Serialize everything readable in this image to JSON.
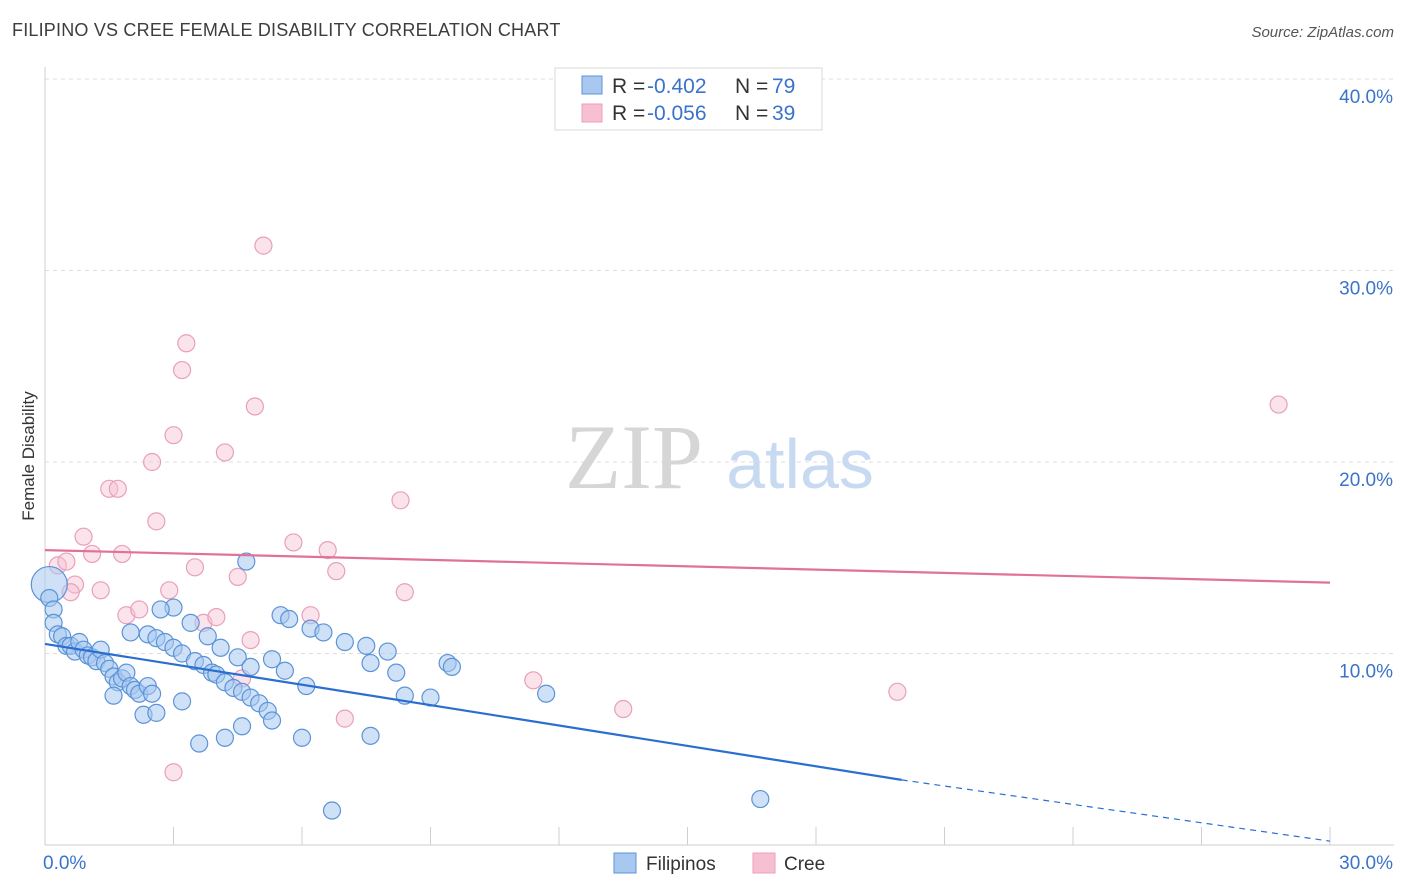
{
  "title": "FILIPINO VS CREE FEMALE DISABILITY CORRELATION CHART",
  "source": "Source: ZipAtlas.com",
  "watermark": {
    "zip": "ZIP",
    "atlas": "atlas"
  },
  "colors": {
    "filipinos_fill": "#a8c8f0",
    "filipinos_stroke": "#5b93d8",
    "filipinos_line": "#2a6fd0",
    "cree_fill": "#f7c0d2",
    "cree_stroke": "#e8a0b8",
    "cree_line": "#e0719a",
    "tick_label": "#3a73c9",
    "grid": "#dddddd"
  },
  "legend": {
    "rows": [
      {
        "r_label": "R = ",
        "r_value": "-0.402",
        "n_label": "N = ",
        "n_value": "79"
      },
      {
        "r_label": "R = ",
        "r_value": "-0.056",
        "n_label": "N = ",
        "n_value": "39"
      }
    ]
  },
  "chart_data": {
    "type": "scatter",
    "title": "FILIPINO VS CREE FEMALE DISABILITY CORRELATION CHART",
    "xlabel": "",
    "ylabel": "Female Disability",
    "xlim": [
      0,
      30
    ],
    "ylim": [
      0,
      40
    ],
    "x_ticks": [
      "0.0%",
      "30.0%"
    ],
    "y_ticks": [
      {
        "value": 10,
        "label": "10.0%"
      },
      {
        "value": 20,
        "label": "20.0%"
      },
      {
        "value": 30,
        "label": "30.0%"
      },
      {
        "value": 40,
        "label": "40.0%"
      }
    ],
    "grid": true,
    "legend_position": "bottom",
    "series": [
      {
        "name": "Filipinos",
        "regression": {
          "x0": 0.0,
          "y0": 10.5,
          "x1": 20.0,
          "y1": 3.4,
          "dashed_to_x": 30.0,
          "dashed_to_y": 0.2
        },
        "points": [
          [
            0.1,
            13.6,
            "big"
          ],
          [
            0.1,
            12.9
          ],
          [
            0.2,
            12.3
          ],
          [
            0.2,
            11.6
          ],
          [
            0.3,
            11.0
          ],
          [
            0.4,
            10.9
          ],
          [
            0.5,
            10.4
          ],
          [
            0.6,
            10.4
          ],
          [
            0.7,
            10.1
          ],
          [
            0.8,
            10.6
          ],
          [
            0.9,
            10.2
          ],
          [
            1.0,
            9.9
          ],
          [
            1.1,
            9.8
          ],
          [
            1.2,
            9.6
          ],
          [
            1.3,
            10.2
          ],
          [
            1.4,
            9.5
          ],
          [
            1.5,
            9.2
          ],
          [
            1.6,
            8.8
          ],
          [
            1.7,
            8.5
          ],
          [
            1.8,
            8.7
          ],
          [
            1.9,
            9.0
          ],
          [
            2.0,
            8.3
          ],
          [
            2.1,
            8.1
          ],
          [
            1.6,
            7.8
          ],
          [
            2.2,
            7.9
          ],
          [
            2.4,
            8.3
          ],
          [
            2.5,
            7.9
          ],
          [
            2.3,
            6.8
          ],
          [
            2.6,
            6.9
          ],
          [
            2.0,
            11.1
          ],
          [
            2.4,
            11.0
          ],
          [
            2.6,
            10.8
          ],
          [
            2.8,
            10.6
          ],
          [
            3.0,
            10.3
          ],
          [
            3.2,
            10.0
          ],
          [
            3.5,
            9.6
          ],
          [
            3.7,
            9.4
          ],
          [
            3.9,
            9.0
          ],
          [
            4.0,
            8.9
          ],
          [
            4.2,
            8.5
          ],
          [
            4.4,
            8.2
          ],
          [
            4.6,
            8.0
          ],
          [
            4.8,
            7.7
          ],
          [
            5.0,
            7.4
          ],
          [
            5.2,
            7.0
          ],
          [
            3.4,
            11.6
          ],
          [
            3.8,
            10.9
          ],
          [
            4.1,
            10.3
          ],
          [
            4.5,
            9.8
          ],
          [
            4.8,
            9.3
          ],
          [
            5.3,
            9.7
          ],
          [
            5.6,
            9.1
          ],
          [
            6.1,
            8.3
          ],
          [
            6.2,
            11.3
          ],
          [
            6.5,
            11.1
          ],
          [
            7.0,
            10.6
          ],
          [
            7.5,
            10.4
          ],
          [
            8.0,
            10.1
          ],
          [
            7.6,
            9.5
          ],
          [
            8.2,
            9.0
          ],
          [
            8.4,
            7.8
          ],
          [
            9.0,
            7.7
          ],
          [
            9.4,
            9.5
          ],
          [
            9.5,
            9.3
          ],
          [
            11.7,
            7.9
          ],
          [
            16.7,
            2.4
          ],
          [
            5.5,
            12.0
          ],
          [
            5.7,
            11.8
          ],
          [
            3.0,
            12.4
          ],
          [
            2.7,
            12.3
          ],
          [
            4.7,
            14.8
          ],
          [
            3.2,
            7.5
          ],
          [
            3.6,
            5.3
          ],
          [
            4.2,
            5.6
          ],
          [
            4.6,
            6.2
          ],
          [
            5.3,
            6.5
          ],
          [
            6.0,
            5.6
          ],
          [
            6.7,
            1.8
          ],
          [
            7.6,
            5.7
          ]
        ]
      },
      {
        "name": "Cree",
        "regression": {
          "x0": 0.0,
          "y0": 15.4,
          "x1": 30.0,
          "y1": 13.7
        },
        "points": [
          [
            0.3,
            14.6
          ],
          [
            0.5,
            14.8
          ],
          [
            0.7,
            13.6
          ],
          [
            0.9,
            16.1
          ],
          [
            1.1,
            15.2
          ],
          [
            1.3,
            13.3
          ],
          [
            1.5,
            18.6
          ],
          [
            1.8,
            15.2
          ],
          [
            1.9,
            12.0
          ],
          [
            2.2,
            12.3
          ],
          [
            2.5,
            20.0
          ],
          [
            2.6,
            16.9
          ],
          [
            2.9,
            13.3
          ],
          [
            3.0,
            21.4
          ],
          [
            3.2,
            24.8
          ],
          [
            3.3,
            26.2
          ],
          [
            3.5,
            14.5
          ],
          [
            3.7,
            11.6
          ],
          [
            4.0,
            11.9
          ],
          [
            4.2,
            20.5
          ],
          [
            4.5,
            14.0
          ],
          [
            4.6,
            8.7
          ],
          [
            4.8,
            10.7
          ],
          [
            4.9,
            22.9
          ],
          [
            5.1,
            31.3
          ],
          [
            5.8,
            15.8
          ],
          [
            6.2,
            12.0
          ],
          [
            6.6,
            15.4
          ],
          [
            6.8,
            14.3
          ],
          [
            7.0,
            6.6
          ],
          [
            8.3,
            18.0
          ],
          [
            8.4,
            13.2
          ],
          [
            11.4,
            8.6
          ],
          [
            13.5,
            7.1
          ],
          [
            19.9,
            8.0
          ],
          [
            28.8,
            23.0
          ],
          [
            3.0,
            3.8
          ],
          [
            1.7,
            18.6
          ],
          [
            0.6,
            13.2
          ]
        ]
      }
    ]
  }
}
